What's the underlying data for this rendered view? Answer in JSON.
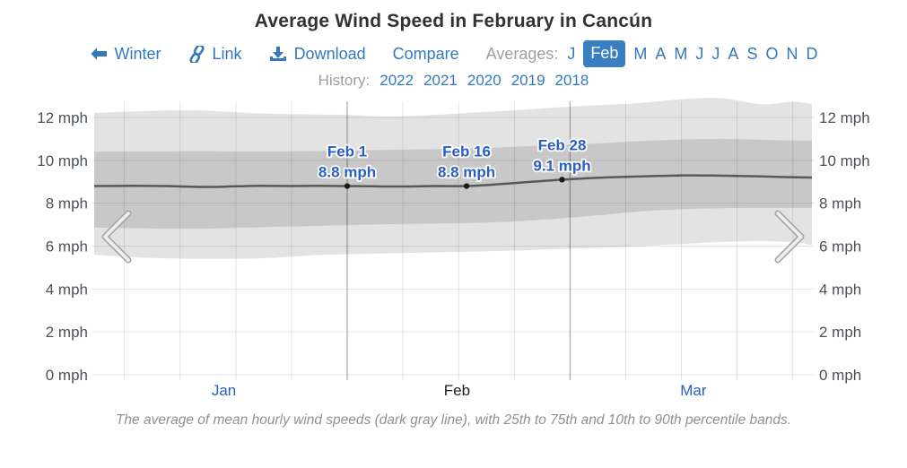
{
  "page": {
    "title": "Average Wind Speed in February in Cancún"
  },
  "toolbar": {
    "winter_label": "Winter",
    "link_label": "Link",
    "download_label": "Download",
    "compare_label": "Compare",
    "averages_label": "Averages:",
    "months": [
      {
        "label": "J",
        "active": false
      },
      {
        "label": "Feb",
        "active": true
      },
      {
        "label": "M",
        "active": false
      },
      {
        "label": "A",
        "active": false
      },
      {
        "label": "M",
        "active": false
      },
      {
        "label": "J",
        "active": false
      },
      {
        "label": "J",
        "active": false
      },
      {
        "label": "A",
        "active": false
      },
      {
        "label": "S",
        "active": false
      },
      {
        "label": "O",
        "active": false
      },
      {
        "label": "N",
        "active": false
      },
      {
        "label": "D",
        "active": false
      }
    ],
    "history_label": "History:",
    "years": [
      "2022",
      "2021",
      "2020",
      "2019",
      "2018"
    ]
  },
  "caption": "The average of mean hourly wind speeds (dark gray line), with 25th to 75th and 10th to 90th percentile bands.",
  "colors": {
    "link_blue": "#3279bd",
    "accent_blue": "#2a5ec6",
    "month_chip_bg": "#3a7ec2",
    "muted_gray": "#9b9fa3",
    "axis_gray": "#4b5157",
    "band_outer_gray": "#e3e3e3",
    "band_inner_gray": "#c8c8c8",
    "mean_line_gray": "#57585a"
  },
  "chart_data": {
    "type": "area",
    "title": "Average Wind Speed in February in Cancún",
    "ylabel": "mph",
    "ylim": [
      0,
      12
    ],
    "yticks": [
      0,
      2,
      4,
      6,
      8,
      10,
      12
    ],
    "ytick_suffix": " mph",
    "x_domain_days_from_jan1": [
      -0.8,
      89.4
    ],
    "grid": true,
    "week_gridline_days": [
      3,
      10,
      17,
      24,
      38,
      45,
      52,
      66,
      73,
      80,
      87
    ],
    "month_gridline_days": [
      31,
      59
    ],
    "months_axis": [
      {
        "label": "Jan",
        "day": 15.5,
        "link": true
      },
      {
        "label": "Feb",
        "day": 44.8,
        "link": false
      },
      {
        "label": "Mar",
        "day": 74.5,
        "link": true
      }
    ],
    "series": [
      {
        "name": "10th to 90th percentile band",
        "kind": "band",
        "points_day_lo_hi": [
          [
            -0.8,
            5.6,
            12.21
          ],
          [
            5,
            5.47,
            12.29
          ],
          [
            12,
            5.41,
            12.33
          ],
          [
            20,
            5.43,
            12.19
          ],
          [
            27,
            5.58,
            12.14
          ],
          [
            31,
            5.62,
            12.12
          ],
          [
            36,
            5.66,
            12.04
          ],
          [
            42,
            5.71,
            12.12
          ],
          [
            46,
            5.74,
            12.21
          ],
          [
            52,
            5.79,
            12.33
          ],
          [
            58,
            5.87,
            12.48
          ],
          [
            63,
            5.92,
            12.58
          ],
          [
            68,
            6.0,
            12.68
          ],
          [
            73,
            6.1,
            12.85
          ],
          [
            78,
            6.19,
            12.9
          ],
          [
            83,
            6.23,
            12.62
          ],
          [
            87,
            6.18,
            12.73
          ],
          [
            89.4,
            6.06,
            12.63
          ]
        ]
      },
      {
        "name": "25th to 75th percentile band",
        "kind": "band",
        "points_day_lo_hi": [
          [
            -0.8,
            6.86,
            10.41
          ],
          [
            5,
            6.83,
            10.41
          ],
          [
            12,
            6.81,
            10.42
          ],
          [
            20,
            6.88,
            10.41
          ],
          [
            27,
            6.94,
            10.43
          ],
          [
            31,
            6.98,
            10.45
          ],
          [
            36,
            7.02,
            10.49
          ],
          [
            42,
            7.05,
            10.52
          ],
          [
            46,
            7.07,
            10.54
          ],
          [
            52,
            7.15,
            10.63
          ],
          [
            58,
            7.3,
            10.73
          ],
          [
            63,
            7.45,
            10.8
          ],
          [
            68,
            7.62,
            10.9
          ],
          [
            73,
            7.72,
            10.97
          ],
          [
            78,
            7.77,
            11.0
          ],
          [
            83,
            7.78,
            10.96
          ],
          [
            87,
            7.78,
            10.92
          ],
          [
            89.4,
            7.78,
            10.91
          ]
        ]
      },
      {
        "name": "average of mean hourly wind speeds",
        "kind": "line",
        "points_day_mph": [
          [
            -0.8,
            8.8
          ],
          [
            4,
            8.81
          ],
          [
            8,
            8.8
          ],
          [
            13,
            8.76
          ],
          [
            17,
            8.79
          ],
          [
            20,
            8.81
          ],
          [
            24,
            8.8
          ],
          [
            27,
            8.81
          ],
          [
            31,
            8.8
          ],
          [
            34,
            8.79
          ],
          [
            38,
            8.78
          ],
          [
            42,
            8.8
          ],
          [
            46,
            8.8
          ],
          [
            49,
            8.86
          ],
          [
            52,
            8.94
          ],
          [
            55,
            9.02
          ],
          [
            58,
            9.1
          ],
          [
            61,
            9.16
          ],
          [
            64,
            9.21
          ],
          [
            68,
            9.25
          ],
          [
            71,
            9.28
          ],
          [
            74,
            9.3
          ],
          [
            77,
            9.29
          ],
          [
            80,
            9.27
          ],
          [
            83,
            9.25
          ],
          [
            86,
            9.22
          ],
          [
            89.4,
            9.2
          ]
        ]
      }
    ],
    "annotations": [
      {
        "date": "Feb 1",
        "value": "8.8 mph",
        "day": 31,
        "mph": 8.8
      },
      {
        "date": "Feb 16",
        "value": "8.8 mph",
        "day": 46,
        "mph": 8.8
      },
      {
        "date": "Feb 28",
        "value": "9.1 mph",
        "day": 58,
        "mph": 9.1
      }
    ]
  }
}
